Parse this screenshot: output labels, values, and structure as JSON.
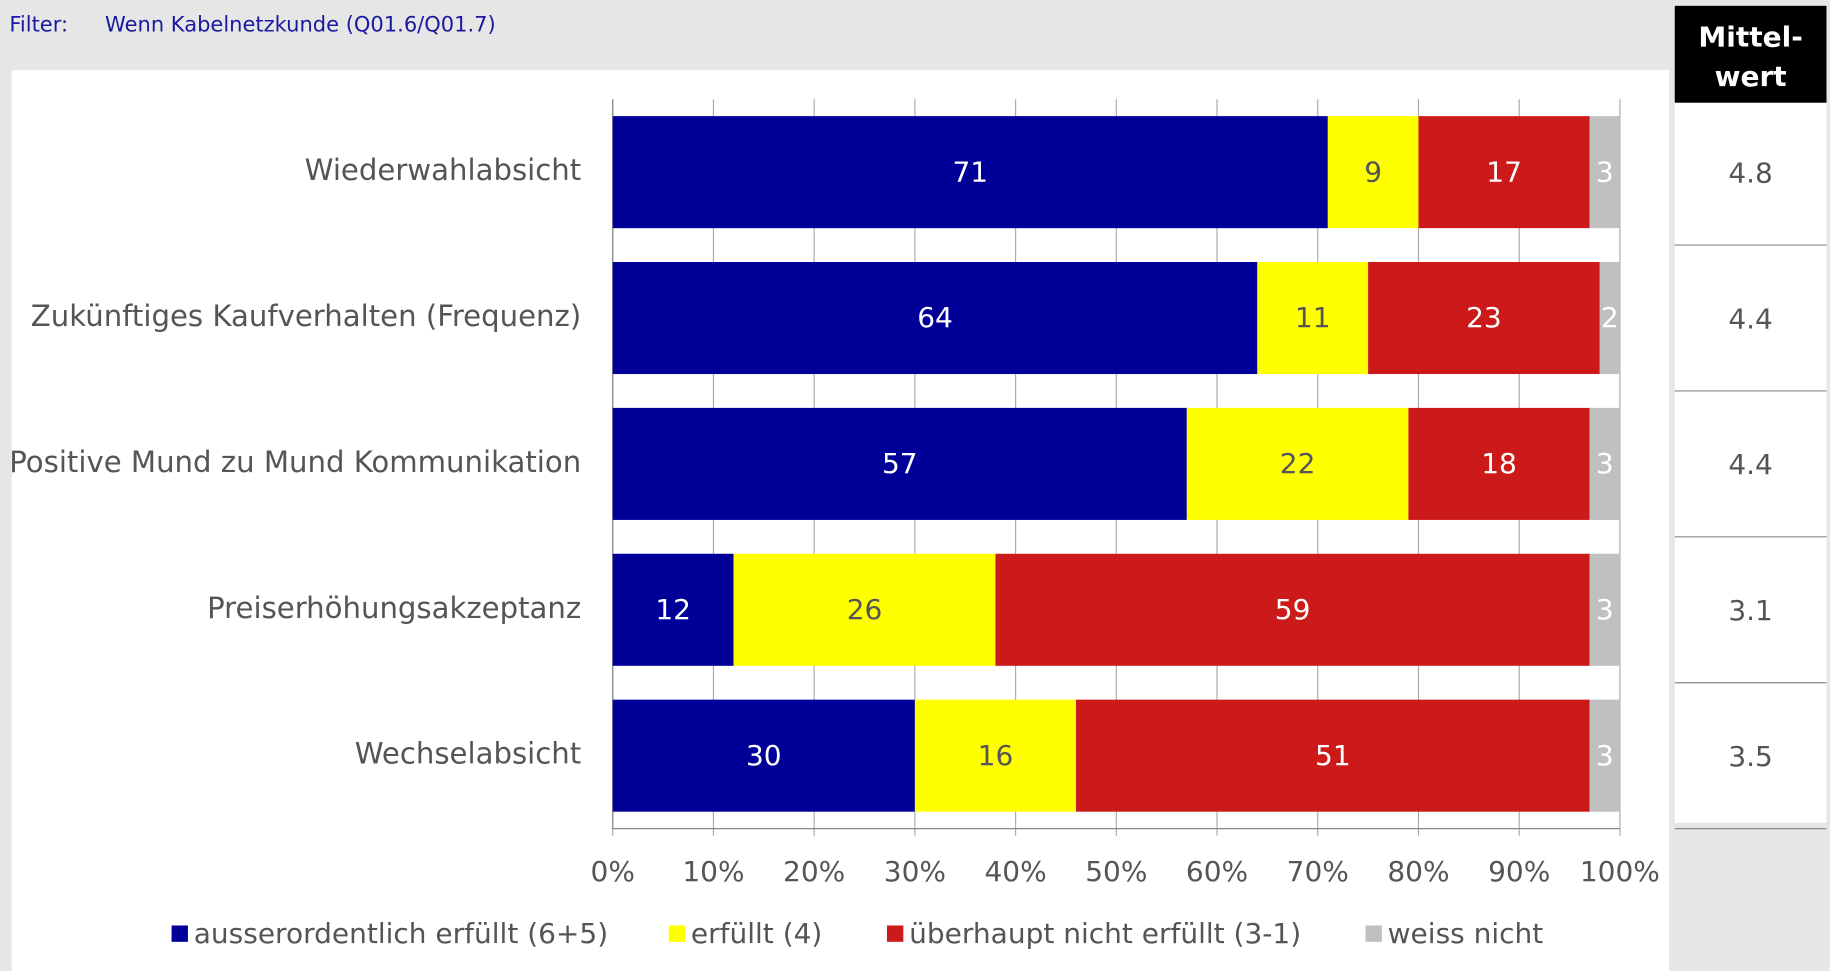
{
  "filter_label": "Filter:",
  "filter_text": "Wenn Kabelnetzkunde (Q01.6/Q01.7)",
  "mean_header": [
    "Mittel-",
    "wert"
  ],
  "mean_values": [
    4.8,
    4.4,
    4.4,
    3.1,
    3.5
  ],
  "chart_data": {
    "type": "stacked-barh",
    "categories": [
      "Wiederwahlabsicht",
      "Zukünftiges Kaufverhalten (Frequenz)",
      "Positive Mund zu Mund Kommunikation",
      "Preiserhöhungsakzeptanz",
      "Wechselabsicht"
    ],
    "series": [
      {
        "name": "ausserordentlich erfüllt (6+5)",
        "color": "#000099",
        "values": [
          71,
          64,
          57,
          12,
          30
        ]
      },
      {
        "name": "erfüllt (4)",
        "color": "#ffff00",
        "values": [
          9,
          11,
          22,
          26,
          16
        ]
      },
      {
        "name": "überhaupt nicht erfüllt (3-1)",
        "color": "#cc1a1a",
        "values": [
          17,
          23,
          18,
          59,
          51
        ]
      },
      {
        "name": "weiss nicht",
        "color": "#c0c0c0",
        "values": [
          3,
          2,
          3,
          3,
          3
        ]
      }
    ],
    "xlim": [
      0,
      100
    ],
    "xticks": [
      {
        "value": 0,
        "label": "0%"
      },
      {
        "value": 10,
        "label": "10%"
      },
      {
        "value": 20,
        "label": "20%"
      },
      {
        "value": 30,
        "label": "30%"
      },
      {
        "value": 40,
        "label": "40%"
      },
      {
        "value": 50,
        "label": "50%"
      },
      {
        "value": 60,
        "label": "60%"
      },
      {
        "value": 70,
        "label": "70%"
      },
      {
        "value": 80,
        "label": "80%"
      },
      {
        "value": 90,
        "label": "90%"
      },
      {
        "value": 100,
        "label": "100%"
      }
    ],
    "grid": true,
    "legend": "bottom"
  }
}
